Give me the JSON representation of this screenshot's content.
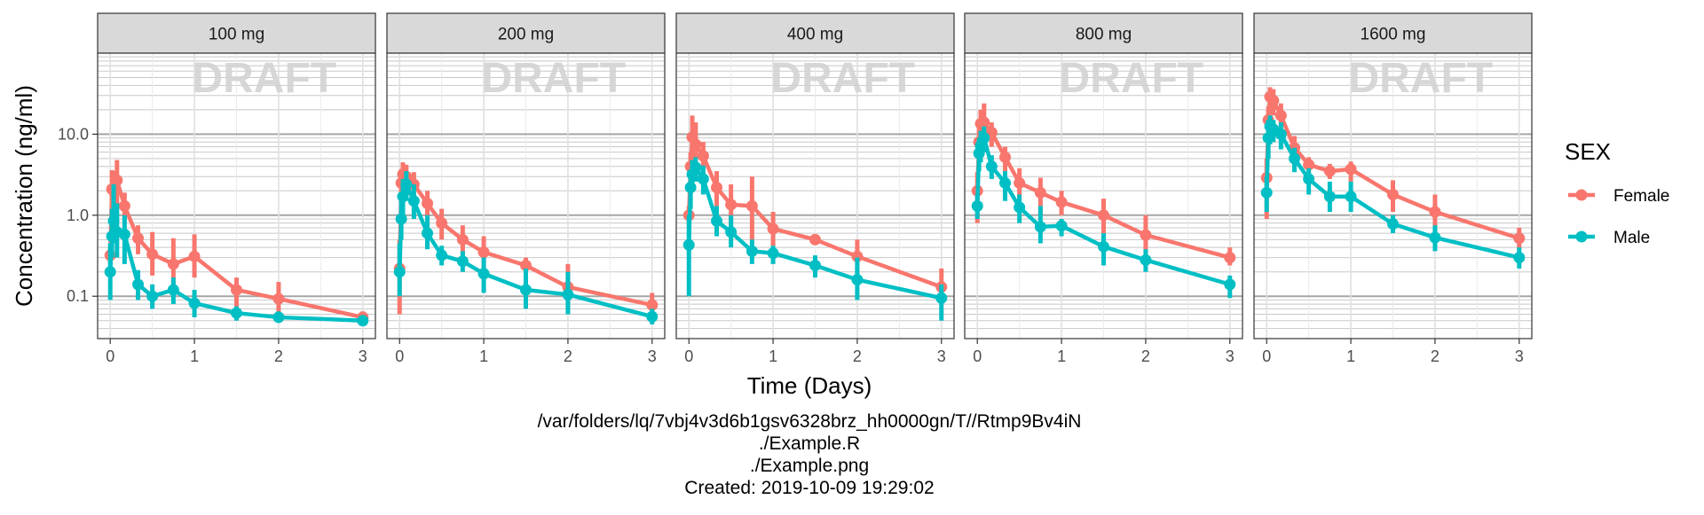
{
  "chart_data": {
    "type": "line",
    "facet_variable": "dose",
    "panels": [
      {
        "label": "100 mg",
        "series": [
          {
            "name": "Female",
            "x": [
              0,
              0.02,
              0.04,
              0.08,
              0.17,
              0.33,
              0.5,
              0.75,
              1,
              1.5,
              2,
              3
            ],
            "y": [
              0.32,
              2.1,
              2.0,
              2.7,
              1.3,
              0.52,
              0.33,
              0.25,
              0.31,
              0.12,
              0.093,
              0.055
            ],
            "lo": [
              0.25,
              1.0,
              0.9,
              1.3,
              0.8,
              0.33,
              0.18,
              0.14,
              0.17,
              0.07,
              0.06,
              0.045
            ],
            "hi": [
              0.4,
              3.6,
              3.5,
              4.8,
              1.9,
              0.75,
              0.62,
              0.52,
              0.58,
              0.17,
              0.15,
              0.065
            ]
          },
          {
            "name": "Male",
            "x": [
              0,
              0.02,
              0.04,
              0.08,
              0.17,
              0.33,
              0.5,
              0.75,
              1,
              1.5,
              2,
              3
            ],
            "y": [
              0.2,
              0.55,
              0.85,
              0.62,
              0.58,
              0.14,
              0.1,
              0.12,
              0.082,
              0.062,
              0.055,
              0.05
            ],
            "lo": [
              0.09,
              0.3,
              0.45,
              0.3,
              0.25,
              0.09,
              0.07,
              0.08,
              0.055,
              0.05,
              0.047,
              0.045
            ],
            "hi": [
              0.45,
              1.2,
              2.4,
              1.4,
              1.0,
              0.21,
              0.14,
              0.17,
              0.12,
              0.075,
              0.065,
              0.058
            ]
          }
        ]
      },
      {
        "label": "200 mg",
        "series": [
          {
            "name": "Female",
            "x": [
              0,
              0.02,
              0.04,
              0.08,
              0.17,
              0.33,
              0.5,
              0.75,
              1,
              1.5,
              2,
              3
            ],
            "y": [
              0.22,
              2.5,
              3.2,
              3.0,
              2.4,
              1.4,
              0.8,
              0.5,
              0.35,
              0.24,
              0.13,
              0.078
            ],
            "lo": [
              0.06,
              1.5,
              1.9,
              1.8,
              1.5,
              0.8,
              0.5,
              0.3,
              0.2,
              0.16,
              0.07,
              0.06
            ],
            "hi": [
              0.5,
              3.7,
              4.5,
              4.2,
              3.4,
              2.0,
              1.2,
              0.75,
              0.55,
              0.3,
              0.25,
              0.11
            ]
          },
          {
            "name": "Male",
            "x": [
              0,
              0.02,
              0.04,
              0.08,
              0.17,
              0.33,
              0.5,
              0.75,
              1,
              1.5,
              2,
              3
            ],
            "y": [
              0.2,
              0.9,
              1.7,
              2.4,
              1.5,
              0.6,
              0.32,
              0.27,
              0.19,
              0.12,
              0.105,
              0.056
            ],
            "lo": [
              0.1,
              0.5,
              1.0,
              1.5,
              0.9,
              0.38,
              0.24,
              0.2,
              0.11,
              0.07,
              0.06,
              0.045
            ],
            "hi": [
              0.45,
              1.5,
              2.8,
              3.5,
              2.4,
              1.0,
              0.42,
              0.36,
              0.3,
              0.22,
              0.2,
              0.07
            ]
          }
        ]
      },
      {
        "label": "400 mg",
        "series": [
          {
            "name": "Female",
            "x": [
              0,
              0.02,
              0.04,
              0.08,
              0.17,
              0.33,
              0.5,
              0.75,
              1,
              1.5,
              2,
              3
            ],
            "y": [
              1.0,
              4.0,
              9.2,
              7.5,
              5.4,
              2.2,
              1.35,
              1.3,
              0.68,
              0.5,
              0.31,
              0.13
            ],
            "lo": [
              0.75,
              2.3,
              4.5,
              3.8,
              3.1,
              1.2,
              0.7,
              0.5,
              0.42,
              0.43,
              0.18,
              0.1
            ],
            "hi": [
              1.3,
              6.0,
              17,
              14,
              8.0,
              3.5,
              2.4,
              3.0,
              1.1,
              0.58,
              0.5,
              0.22
            ]
          },
          {
            "name": "Male",
            "x": [
              0,
              0.02,
              0.04,
              0.08,
              0.17,
              0.33,
              0.5,
              0.75,
              1,
              1.5,
              2,
              3
            ],
            "y": [
              0.43,
              2.2,
              3.2,
              3.9,
              2.8,
              0.85,
              0.62,
              0.36,
              0.34,
              0.24,
              0.16,
              0.095
            ],
            "lo": [
              0.1,
              1.2,
              2.0,
              2.6,
              1.8,
              0.55,
              0.4,
              0.25,
              0.25,
              0.17,
              0.09,
              0.05
            ],
            "hi": [
              1.0,
              3.5,
              4.8,
              5.2,
              4.1,
              1.3,
              1.0,
              0.5,
              0.42,
              0.32,
              0.3,
              0.14
            ]
          }
        ]
      },
      {
        "label": "800 mg",
        "series": [
          {
            "name": "Female",
            "x": [
              0,
              0.02,
              0.04,
              0.08,
              0.17,
              0.33,
              0.5,
              0.75,
              1,
              1.5,
              2,
              3
            ],
            "y": [
              2.0,
              8.0,
              13.5,
              14.0,
              10.5,
              5.2,
              2.5,
              1.9,
              1.45,
              1.0,
              0.57,
              0.3
            ],
            "lo": [
              0.8,
              4.5,
              8.5,
              8.5,
              7.0,
              3.5,
              1.5,
              1.0,
              1.0,
              0.6,
              0.35,
              0.24
            ],
            "hi": [
              3.4,
              13,
              20,
              24,
              14,
              7.0,
              3.8,
              2.9,
              2.0,
              1.6,
              1.0,
              0.4
            ]
          },
          {
            "name": "Male",
            "x": [
              0,
              0.02,
              0.04,
              0.08,
              0.17,
              0.33,
              0.5,
              0.75,
              1,
              1.5,
              2,
              3
            ],
            "y": [
              1.3,
              5.8,
              7.2,
              9.0,
              4.0,
              2.5,
              1.25,
              0.72,
              0.74,
              0.41,
              0.28,
              0.14
            ],
            "lo": [
              0.9,
              3.5,
              4.5,
              6.0,
              2.8,
              1.5,
              0.8,
              0.45,
              0.55,
              0.24,
              0.2,
              0.095
            ],
            "hi": [
              1.8,
              9.0,
              11,
              12.5,
              5.5,
              3.5,
              1.8,
              1.3,
              0.9,
              0.6,
              0.38,
              0.18
            ]
          }
        ]
      },
      {
        "label": "1600 mg",
        "series": [
          {
            "name": "Female",
            "x": [
              0,
              0.02,
              0.04,
              0.08,
              0.17,
              0.33,
              0.5,
              0.75,
              1,
              1.5,
              2,
              3
            ],
            "y": [
              2.9,
              15,
              29,
              26,
              17,
              6.8,
              4.2,
              3.5,
              3.7,
              1.8,
              1.1,
              0.52
            ],
            "lo": [
              0.9,
              8.0,
              18,
              17,
              11,
              4.5,
              3.1,
              2.8,
              2.6,
              1.1,
              0.6,
              0.38
            ],
            "hi": [
              5.0,
              22,
              38,
              36,
              24,
              9.5,
              5.2,
              4.3,
              4.6,
              2.7,
              1.8,
              0.7
            ]
          },
          {
            "name": "Male",
            "x": [
              0,
              0.02,
              0.04,
              0.08,
              0.17,
              0.33,
              0.5,
              0.75,
              1,
              1.5,
              2,
              3
            ],
            "y": [
              1.9,
              9.0,
              12.5,
              11.5,
              10.0,
              5.0,
              2.8,
              1.7,
              1.7,
              0.78,
              0.53,
              0.3
            ],
            "lo": [
              1.1,
              5.0,
              7.5,
              8.0,
              6.5,
              3.4,
              1.8,
              1.1,
              1.1,
              0.6,
              0.36,
              0.22
            ],
            "hi": [
              3.0,
              15,
              17,
              15,
              14,
              6.8,
              3.8,
              2.6,
              2.6,
              1.0,
              0.75,
              0.4
            ]
          }
        ]
      }
    ],
    "xlabel": "Time (Days)",
    "ylabel": "Concentration (ng/ml)",
    "x_ticks": [
      0,
      1,
      2,
      3
    ],
    "x_tick_labels": [
      "0",
      "1",
      "2",
      "3"
    ],
    "xlim": [
      -0.15,
      3.15
    ],
    "y_scale": "log10",
    "ylim": [
      0.03,
      100
    ],
    "y_ticks": [
      0.1,
      1.0,
      10.0
    ],
    "y_tick_labels": [
      "0.1",
      "1.0",
      "10.0"
    ],
    "grid": true,
    "watermark": "DRAFT",
    "legend": {
      "title": "SEX",
      "placement": "right",
      "entries": [
        "Female",
        "Male"
      ]
    },
    "colors": {
      "Female": "#F8766D",
      "Male": "#00BFC4"
    }
  },
  "footer": {
    "lines": [
      "/var/folders/lq/7vbj4v3d6b1gsv6328brz_hh0000gn/T//Rtmp9Bv4iN",
      "./Example.R",
      "./Example.png",
      "Created: 2019-10-09 19:29:02"
    ]
  }
}
